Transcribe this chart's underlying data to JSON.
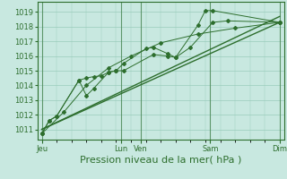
{
  "bg_color": "#c8e8e0",
  "grid_color": "#99ccbb",
  "line_color": "#2d6e2d",
  "marker_color": "#2d6e2d",
  "xlabel": "Pression niveau de la mer( hPa )",
  "xlabel_fontsize": 8,
  "ylabel_tick_fontsize": 6,
  "xlabel_tick_fontsize": 6,
  "ylim": [
    1010.3,
    1019.7
  ],
  "yticks": [
    1011,
    1012,
    1013,
    1014,
    1015,
    1016,
    1017,
    1018,
    1019
  ],
  "xtick_labels_named": [
    "Jeu",
    "Lun",
    "Ven",
    "Sam",
    "Dim"
  ],
  "xtick_positions_named": [
    0.0,
    5.33,
    6.67,
    11.33,
    16.0
  ],
  "total_x_points": 16,
  "series1_x": [
    0,
    0.5,
    1.0,
    2.5,
    3.0,
    3.5,
    4.0,
    4.5,
    5.0,
    5.5,
    7.5,
    8.5,
    9.0,
    10.0,
    11.5,
    12.5,
    16.0
  ],
  "series1_y": [
    1010.7,
    1011.6,
    1011.9,
    1014.35,
    1014.5,
    1014.6,
    1014.65,
    1014.9,
    1015.0,
    1015.0,
    1016.1,
    1016.0,
    1015.9,
    1016.6,
    1018.3,
    1018.4,
    1018.3
  ],
  "series2_x": [
    0,
    0.5,
    1.0,
    2.5,
    3.0,
    3.5,
    4.5,
    5.0,
    5.5,
    7.0,
    7.5,
    8.5,
    9.0,
    10.5,
    11.0,
    11.5,
    16.0
  ],
  "series2_y": [
    1010.7,
    1011.6,
    1011.9,
    1014.35,
    1013.3,
    1013.8,
    1014.9,
    1015.0,
    1015.5,
    1016.5,
    1016.6,
    1016.15,
    1015.9,
    1018.1,
    1019.1,
    1019.1,
    1018.3
  ],
  "series3_x": [
    0,
    1.5,
    3.0,
    4.5,
    6.0,
    8.0,
    10.5,
    13.0,
    16.0
  ],
  "series3_y": [
    1010.7,
    1012.2,
    1014.0,
    1015.2,
    1016.0,
    1016.9,
    1017.5,
    1017.9,
    1018.3
  ],
  "trend1_x": [
    0,
    16.0
  ],
  "trend1_y": [
    1011.0,
    1018.3
  ],
  "trend2_x": [
    0,
    16.0
  ],
  "trend2_y": [
    1011.0,
    1018.7
  ],
  "vline_positions": [
    0.0,
    5.33,
    6.67,
    11.33,
    16.0
  ]
}
